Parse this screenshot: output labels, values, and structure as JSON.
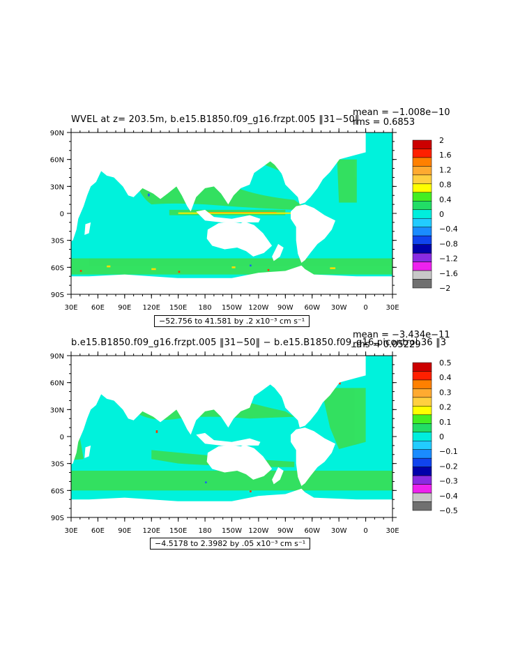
{
  "panels": [
    {
      "title": "WVEL at z= 203.5m, b.e15.B1850.f09_g16.frzpt.005 ‖31−50‖",
      "mean": "mean = −1.008e−10",
      "rms": "rms = 0.6853",
      "range": "−52.756 to 41.581 by .2 x10⁻³ cm s⁻¹",
      "colorbar": [
        "2",
        "1.6",
        "1.2",
        "0.8",
        "0.4",
        "0",
        "−0.4",
        "−0.8",
        "−1.2",
        "−1.6",
        "−2"
      ]
    },
    {
      "title": "b.e15.B1850.f09_g16.frzpt.005 ‖31−50‖ − b.e15.B1850.f09_g16.picontrol.36 ‖3",
      "mean": "mean = −3.434e−11",
      "rms": "rms = 0.05229",
      "range": "−4.5178 to 2.3982 by .05 x10⁻³ cm s⁻¹",
      "colorbar": [
        "0.5",
        "0.4",
        "0.3",
        "0.2",
        "0.1",
        "0",
        "−0.1",
        "−0.2",
        "−0.3",
        "−0.4",
        "−0.5"
      ]
    }
  ],
  "axes": {
    "lat_labels": [
      "90N",
      "60N",
      "30N",
      "0",
      "30S",
      "60S",
      "90S"
    ],
    "lon_labels": [
      "30E",
      "60E",
      "90E",
      "120E",
      "150E",
      "180",
      "150W",
      "120W",
      "90W",
      "60W",
      "30W",
      "0",
      "30E"
    ]
  },
  "colors": {
    "ocean_main": "#00f2dc",
    "ocean_pos": "#36e05a",
    "land": "#ffffff",
    "colorbar_bins": [
      "#cc0000",
      "#ff2000",
      "#ff8000",
      "#ffaa30",
      "#ffd040",
      "#ffff00",
      "#44ee22",
      "#22dd66",
      "#00eedd",
      "#22ccff",
      "#1a8cff",
      "#1044ee",
      "#0000aa",
      "#8a2be2",
      "#ee22ee",
      "#c8c8c8",
      "#707070"
    ]
  }
}
